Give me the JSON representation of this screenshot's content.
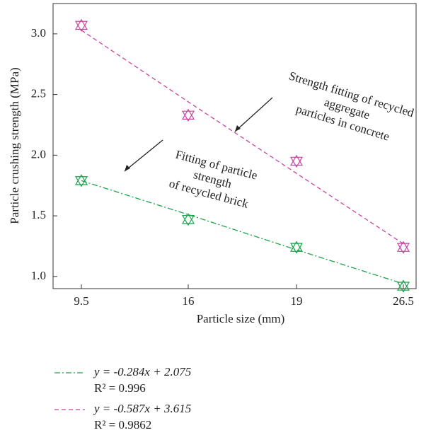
{
  "chart_data": {
    "type": "line",
    "xlabel": "Particle size (mm)",
    "ylabel": "Particle crushing strength (MPa)",
    "categories": [
      "9.5",
      "16",
      "19",
      "26.5"
    ],
    "ylim": [
      0.9,
      3.25
    ],
    "yticks": [
      {
        "value": 1,
        "label": "1.0"
      },
      1.5,
      {
        "value": 2,
        "label": "2.0"
      },
      2.5,
      {
        "value": 3,
        "label": "3.0"
      }
    ],
    "series": [
      {
        "name": "y = -0.284x + 2.075",
        "r2": "R² = 0.996",
        "color": "#1aa34a",
        "dash": "8 3 2 3",
        "values": [
          1.79,
          1.47,
          1.24,
          0.92
        ],
        "fit_values": [
          1.79,
          1.51,
          1.22,
          0.94
        ]
      },
      {
        "name": "y = -0.587x + 3.615",
        "r2": "R² = 0.9862",
        "color": "#c8449f",
        "dash": "6 4",
        "values": [
          3.07,
          2.33,
          1.95,
          1.24
        ],
        "fit_values": [
          3.03,
          2.44,
          1.85,
          1.27
        ]
      }
    ],
    "annotations": [
      {
        "lines": [
          "Strength fitting of recycled",
          "aggregate",
          "particles in concrete"
        ]
      },
      {
        "lines": [
          "Fitting of particle",
          "strength",
          "of recycled brick"
        ]
      }
    ]
  }
}
